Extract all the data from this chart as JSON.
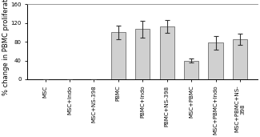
{
  "categories": [
    "MSC",
    "MSC+Indo",
    "MSC+NS-398",
    "PBMC",
    "PBMC+Indo",
    "PBMC+NS-398",
    "MSC+PBMC",
    "MSC+PBMC+Indo",
    "MSC+PBMC+NS-\n398"
  ],
  "values": [
    0,
    0,
    0,
    100,
    107,
    113,
    40,
    78,
    85
  ],
  "errors": [
    0,
    0,
    0,
    15,
    18,
    14,
    5,
    15,
    12
  ],
  "bar_color": "#d0d0d0",
  "bar_edgecolor": "#555555",
  "ylabel": "% change in PBMC proliferation",
  "ylim": [
    0,
    160
  ],
  "yticks": [
    0,
    40,
    80,
    120,
    160
  ],
  "background_color": "#ffffff",
  "grid_color": "#999999",
  "tick_fontsize": 5.0,
  "ylabel_fontsize": 6.0,
  "bar_width": 0.6
}
